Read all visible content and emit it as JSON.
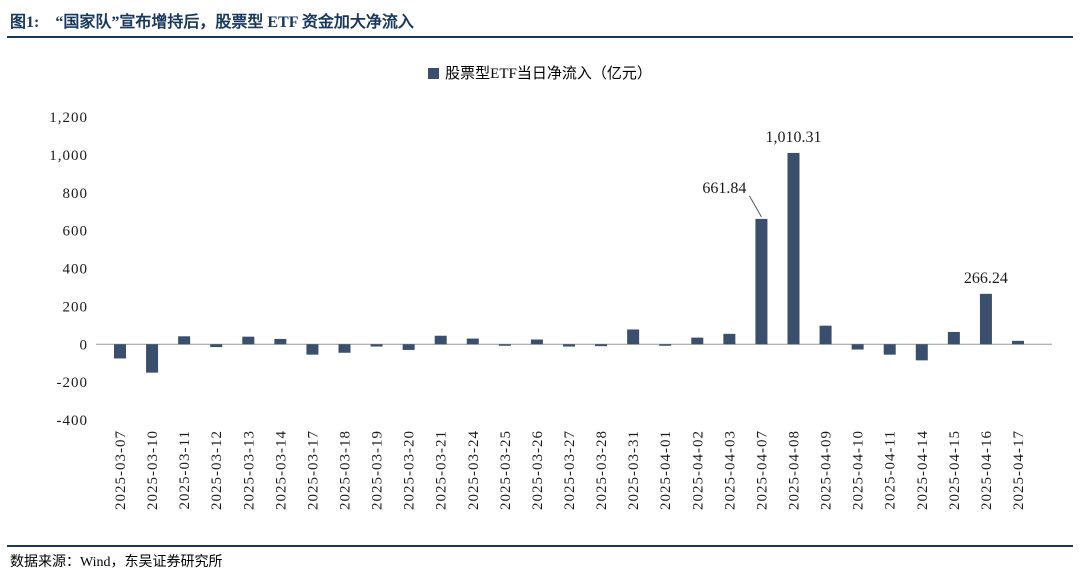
{
  "header": {
    "figure_label": "图1:",
    "title": "“国家队”宣布增持后，股票型 ETF 资金加大净流入"
  },
  "footer": {
    "source": "数据来源：Wind，东吴证券研究所"
  },
  "colors": {
    "accent": "#17375D",
    "bar": "#394F6D"
  },
  "chart_data": {
    "type": "bar",
    "title": "图1: “国家队”宣布增持后，股票型 ETF 资金加大净流入",
    "legend": "股票型ETF当日净流入（亿元）",
    "legend_position": "top-center",
    "grid": false,
    "ylim": [
      -400,
      1200
    ],
    "ytick_step": 200,
    "ytick_labels": [
      "1,200",
      "1,000",
      "800",
      "600",
      "400",
      "200",
      "0",
      "-200",
      "-400"
    ],
    "bar_color": "#394F6D",
    "categories": [
      "2025-03-07",
      "2025-03-10",
      "2025-03-11",
      "2025-03-12",
      "2025-03-13",
      "2025-03-14",
      "2025-03-17",
      "2025-03-18",
      "2025-03-19",
      "2025-03-20",
      "2025-03-21",
      "2025-03-24",
      "2025-03-25",
      "2025-03-26",
      "2025-03-27",
      "2025-03-28",
      "2025-03-31",
      "2025-04-01",
      "2025-04-02",
      "2025-04-03",
      "2025-04-07",
      "2025-04-08",
      "2025-04-09",
      "2025-04-10",
      "2025-04-11",
      "2025-04-14",
      "2025-04-15",
      "2025-04-16",
      "2025-04-17"
    ],
    "values": [
      -75,
      -150,
      42,
      -15,
      40,
      28,
      -55,
      -45,
      -12,
      -30,
      45,
      30,
      -5,
      25,
      -12,
      -10,
      78,
      -8,
      35,
      55,
      661.84,
      1010.31,
      98,
      -28,
      -55,
      -85,
      65,
      266.24,
      18
    ],
    "annotations": [
      {
        "category": "2025-04-07",
        "text": "661.84",
        "style": "callout-left"
      },
      {
        "category": "2025-04-08",
        "text": "1,010.31",
        "style": "above"
      },
      {
        "category": "2025-04-16",
        "text": "266.24",
        "style": "above"
      }
    ]
  }
}
